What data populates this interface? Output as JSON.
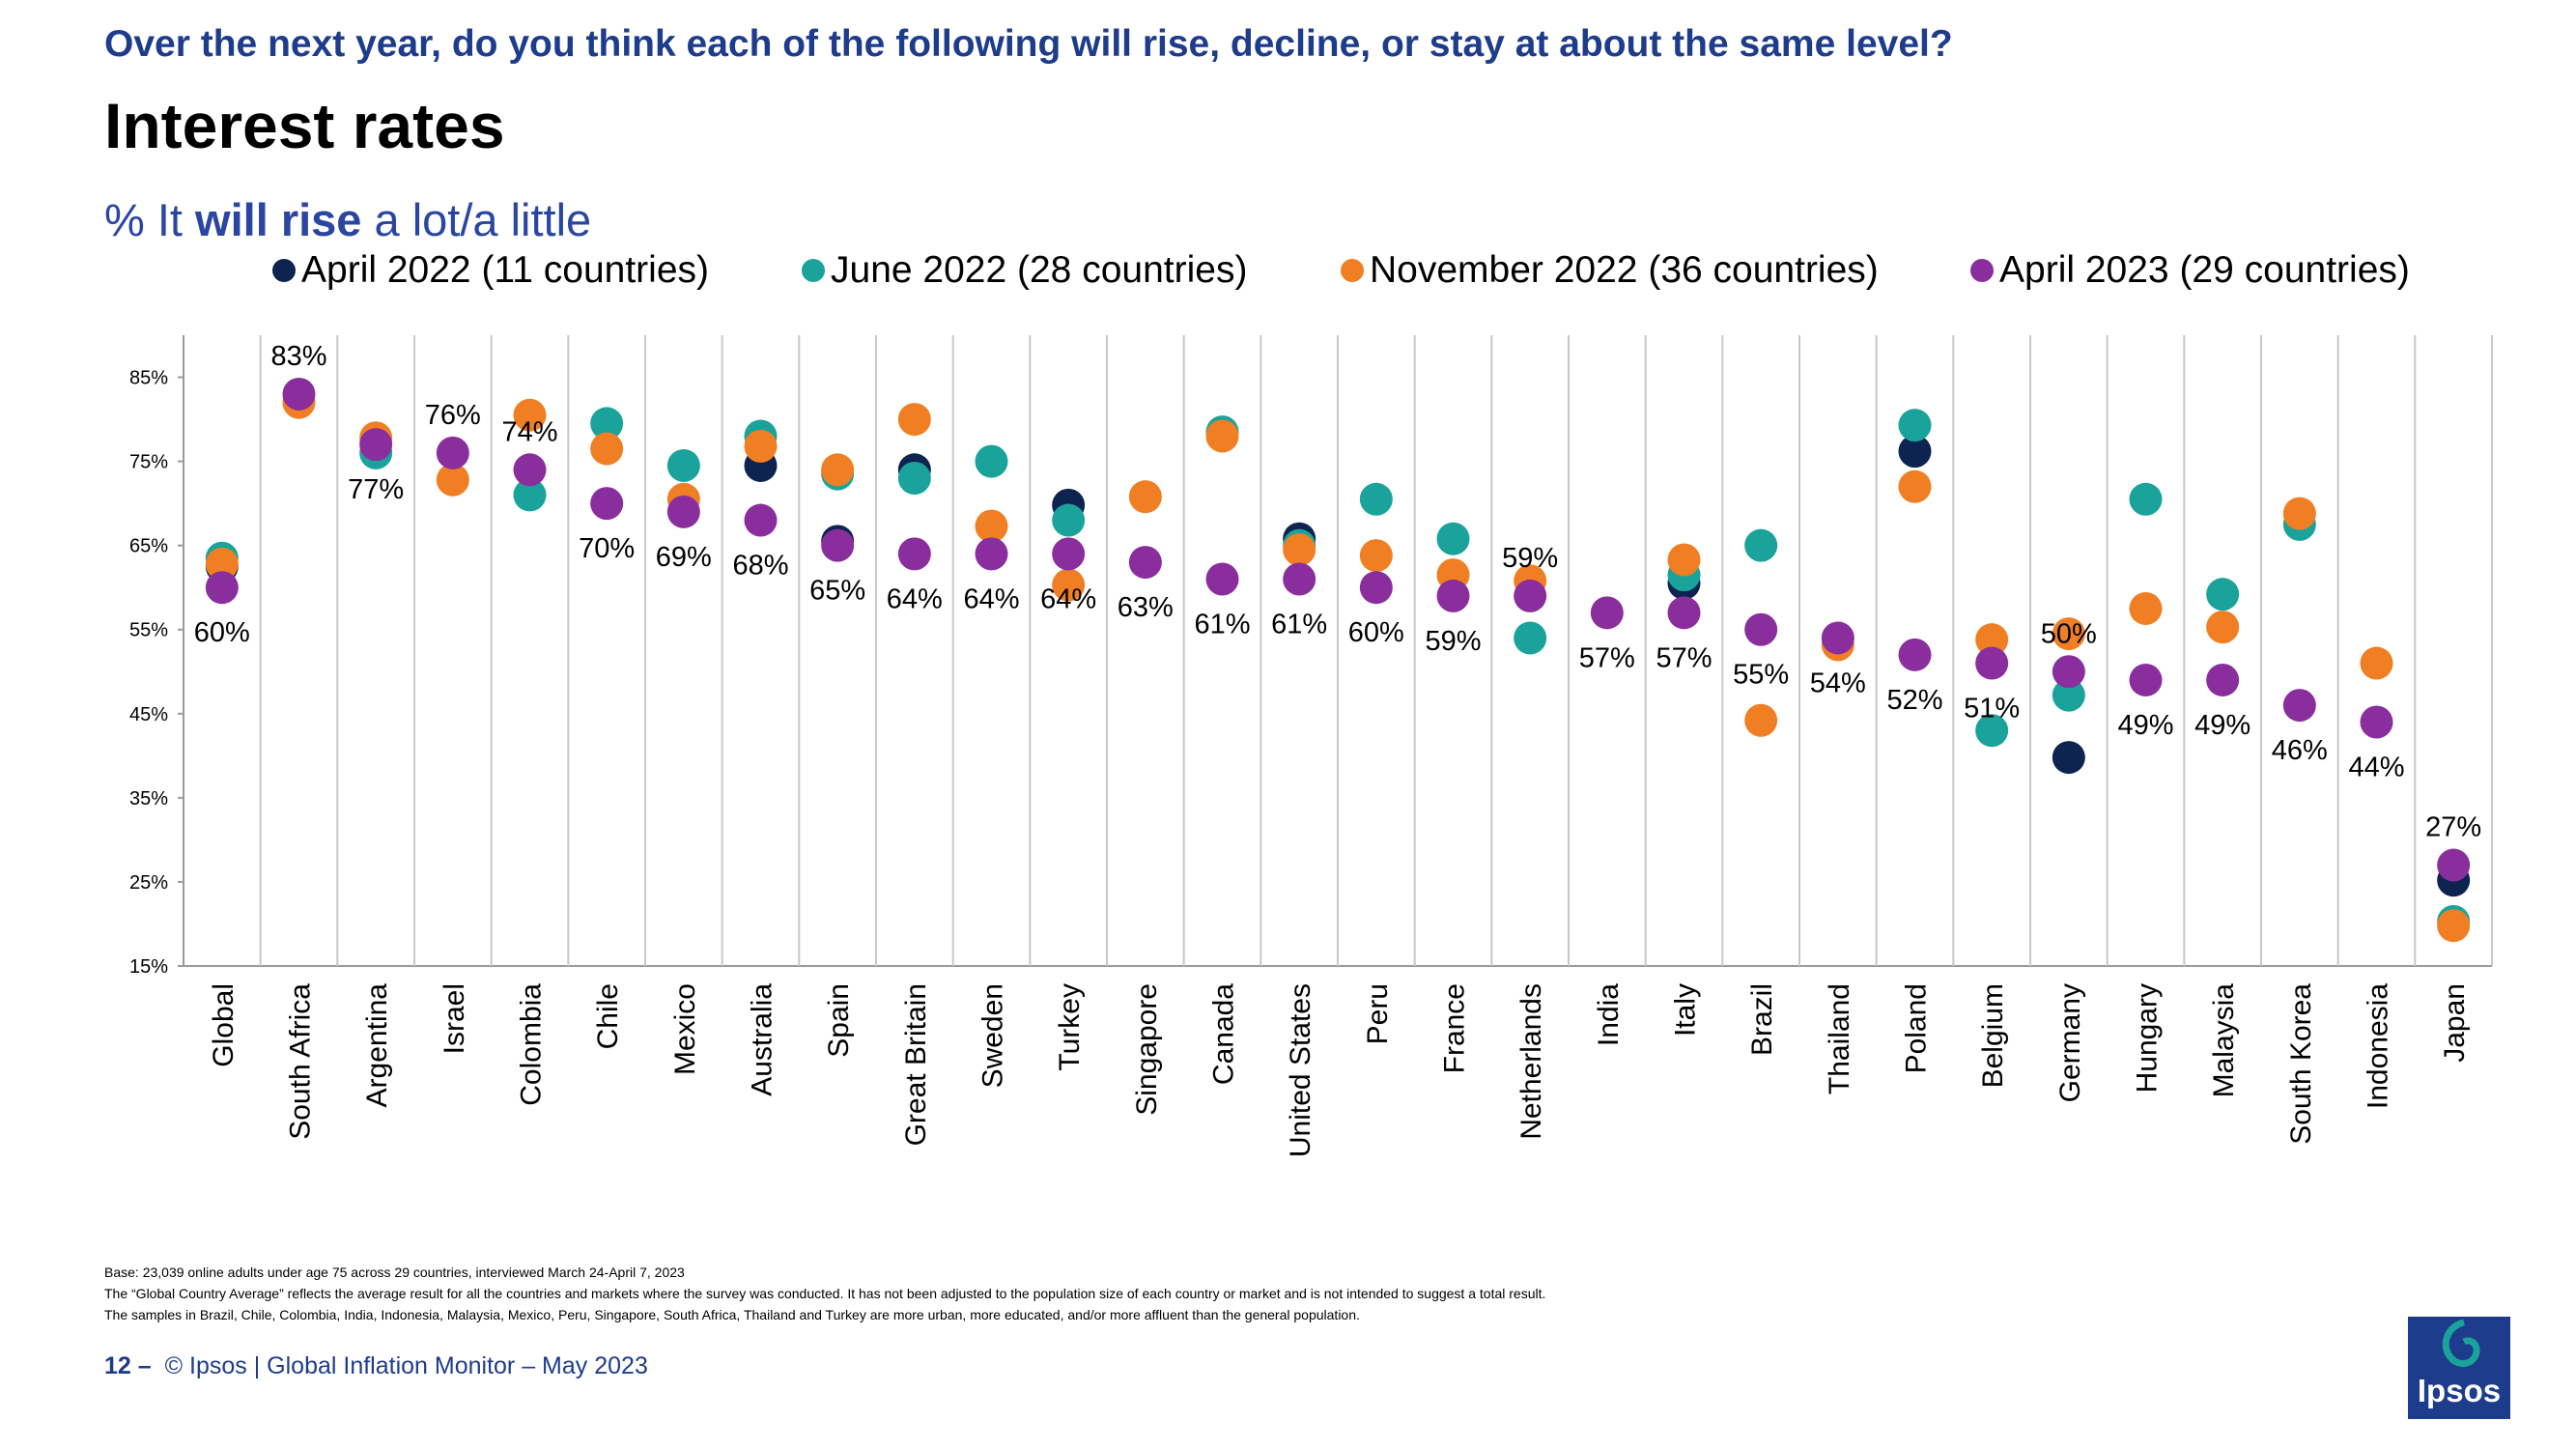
{
  "header": {
    "question": "Over the next year, do you think each of the following will rise, decline, or stay at about the same level?",
    "title": "Interest rates",
    "subtitle_prefix": "% It ",
    "subtitle_bold": "will rise",
    "subtitle_suffix": " a lot/a little"
  },
  "chart_data": {
    "type": "scatter",
    "title": "Interest rates",
    "subtitle": "% It will rise a lot/a little",
    "xlabel": "",
    "ylabel": "",
    "ylim": [
      15,
      90
    ],
    "yticks": [
      15,
      25,
      35,
      45,
      55,
      65,
      75,
      85
    ],
    "ytick_labels": [
      "15%",
      "25%",
      "35%",
      "45%",
      "55%",
      "65%",
      "75%",
      "85%"
    ],
    "legend_position": "top",
    "grid": "vertical separators between categories",
    "categories": [
      "Global",
      "South Africa",
      "Argentina",
      "Israel",
      "Colombia",
      "Chile",
      "Mexico",
      "Australia",
      "Spain",
      "Great Britain",
      "Sweden",
      "Turkey",
      "Singapore",
      "Canada",
      "United States",
      "Peru",
      "France",
      "Netherlands",
      "India",
      "Italy",
      "Brazil",
      "Thailand",
      "Poland",
      "Belgium",
      "Germany",
      "Hungary",
      "Malaysia",
      "South Korea",
      "Indonesia",
      "Japan"
    ],
    "series": [
      {
        "name": "April 2022 (11 countries)",
        "color": "#0d2451",
        "values": [
          62.5,
          null,
          null,
          null,
          null,
          null,
          null,
          74.5,
          65.5,
          74.0,
          null,
          69.8,
          null,
          null,
          65.8,
          null,
          null,
          null,
          null,
          60.5,
          null,
          null,
          76.2,
          null,
          39.8,
          null,
          null,
          null,
          null,
          25.2
        ]
      },
      {
        "name": "June 2022 (28 countries)",
        "color": "#1aa39a",
        "values": [
          63.5,
          null,
          76.0,
          null,
          71.0,
          79.5,
          74.5,
          78.0,
          73.5,
          73.0,
          75.0,
          68.0,
          null,
          78.5,
          65.0,
          70.5,
          65.8,
          54.0,
          null,
          61.5,
          65.0,
          null,
          79.3,
          43.0,
          47.2,
          70.5,
          59.2,
          67.5,
          null,
          20.3
        ]
      },
      {
        "name": "November 2022 (36 countries)",
        "color": "#f07f24",
        "values": [
          62.8,
          82.0,
          77.8,
          72.8,
          80.5,
          76.5,
          70.5,
          76.8,
          74.0,
          80.0,
          67.3,
          60.3,
          70.8,
          78.0,
          64.5,
          63.8,
          61.5,
          60.8,
          null,
          63.3,
          44.2,
          53.2,
          72.0,
          53.8,
          54.5,
          57.5,
          55.3,
          68.8,
          51.0,
          19.8
        ]
      },
      {
        "name": "April 2023 (29 countries)",
        "color": "#8a2e9e",
        "values": [
          60,
          83,
          77,
          76,
          74,
          70,
          69,
          68,
          65,
          64,
          64,
          64,
          63,
          61,
          61,
          60,
          59,
          59,
          57,
          57,
          55,
          54,
          52,
          51,
          50,
          49,
          49,
          46,
          44,
          27
        ]
      }
    ],
    "data_labels": [
      "60%",
      "83%",
      "77%",
      "76%",
      "74%",
      "70%",
      "69%",
      "68%",
      "65%",
      "64%",
      "64%",
      "64%",
      "63%",
      "61%",
      "61%",
      "60%",
      "59%",
      "59%",
      "57%",
      "57%",
      "55%",
      "54%",
      "52%",
      "51%",
      "50%",
      "49%",
      "49%",
      "46%",
      "44%",
      "27%"
    ],
    "data_label_side": [
      "below",
      "above",
      "below",
      "above",
      "above",
      "below",
      "below",
      "below",
      "below",
      "below",
      "below",
      "below",
      "below",
      "below",
      "below",
      "below",
      "below",
      "above",
      "below",
      "below",
      "below",
      "below",
      "below",
      "below",
      "above",
      "below",
      "below",
      "below",
      "below",
      "above"
    ]
  },
  "footnotes": [
    "Base: 23,039 online adults under age 75 across 29 countries, interviewed March 24-April 7, 2023",
    "The “Global Country Average” reflects the average result for all the countries and markets where the survey was conducted. It has not been adjusted to the population size of each country or market and is not intended to suggest a total result.",
    "The samples in Brazil, Chile, Colombia, India, Indonesia, Malaysia, Mexico, Peru, Singapore, South Africa, Thailand and Turkey are more urban, more educated, and/or more affluent than the general population."
  ],
  "footer": {
    "page_number": "12 –",
    "text": "© Ipsos | Global Inflation Monitor – May 2023"
  },
  "logo": {
    "text": "Ipsos",
    "color": "#1aa39a",
    "bg": "#1e3c8c"
  }
}
